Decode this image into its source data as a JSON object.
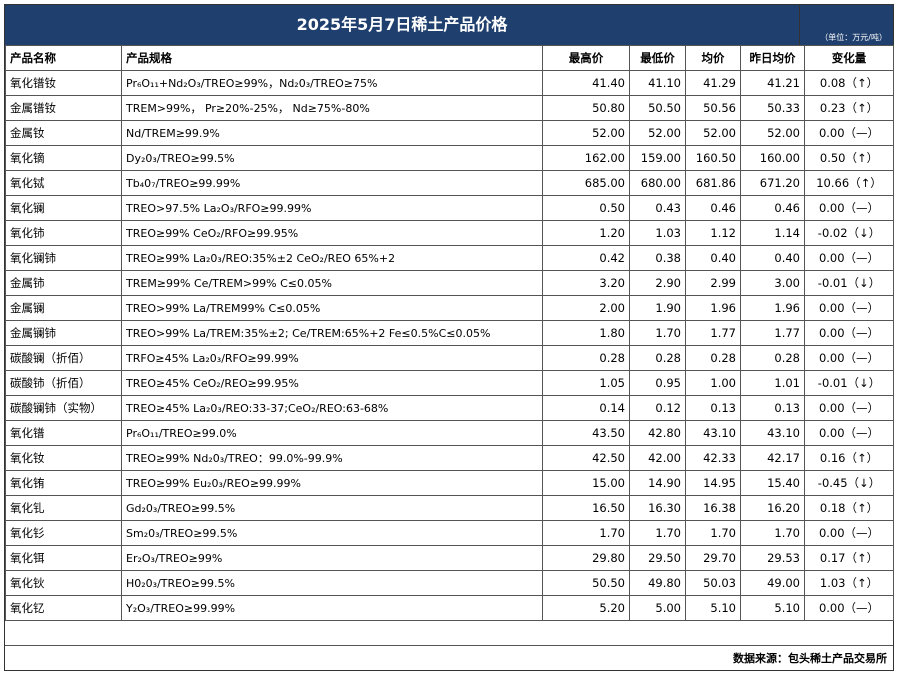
{
  "title": "2025年5月7日稀土产品价格",
  "unit": "（单位：万元/吨）",
  "headers": {
    "name": "产品名称",
    "spec": "产品规格",
    "high": "最高价",
    "low": "最低价",
    "avg": "均价",
    "prev": "昨日均价",
    "change": "变化量"
  },
  "rows": [
    {
      "name": "氧化镨钕",
      "spec": "Pr₆O₁₁+Nd₂O₃/TREO≥99%，Nd₂0₃/TREO≥75%",
      "high": "41.40",
      "low": "41.10",
      "avg": "41.29",
      "prev": "41.21",
      "change": "0.08（↑）"
    },
    {
      "name": "金属镨钕",
      "spec": "TREM>99%，  Pr≥20%-25%，  Nd≥75%-80%",
      "high": "50.80",
      "low": "50.50",
      "avg": "50.56",
      "prev": "50.33",
      "change": "0.23（↑）"
    },
    {
      "name": "金属钕",
      "spec": "Nd/TREM≥99.9%",
      "high": "52.00",
      "low": "52.00",
      "avg": "52.00",
      "prev": "52.00",
      "change": "0.00（—）"
    },
    {
      "name": "氧化镝",
      "spec": "Dy₂0₃/TREO≥99.5%",
      "high": "162.00",
      "low": "159.00",
      "avg": "160.50",
      "prev": "160.00",
      "change": "0.50（↑）"
    },
    {
      "name": "氧化铽",
      "spec": "Tb₄0₇/TREO≥99.99%",
      "high": "685.00",
      "low": "680.00",
      "avg": "681.86",
      "prev": "671.20",
      "change": "10.66（↑）"
    },
    {
      "name": "氧化镧",
      "spec": "TREO>97.5%   La₂O₃/RFO≥99.99%",
      "high": "0.50",
      "low": "0.43",
      "avg": "0.46",
      "prev": "0.46",
      "change": "0.00（—）"
    },
    {
      "name": "氧化铈",
      "spec": "TREO≥99%   CeO₂/RFO≥99.95%",
      "high": "1.20",
      "low": "1.03",
      "avg": "1.12",
      "prev": "1.14",
      "change": "-0.02（↓）"
    },
    {
      "name": "氧化镧铈",
      "spec": "TREO≥99%   La₂0₃/REO:35%±2  CeO₂/REO  65%+2",
      "high": "0.42",
      "low": "0.38",
      "avg": "0.40",
      "prev": "0.40",
      "change": "0.00（—）"
    },
    {
      "name": "金属铈",
      "spec": "TREM≥99%    Ce/TREM>99%   C≤0.05%",
      "high": "3.20",
      "low": "2.90",
      "avg": "2.99",
      "prev": "3.00",
      "change": "-0.01（↓）"
    },
    {
      "name": "金属镧",
      "spec": "TREO>99%   La/TREM99%  C≤0.05%",
      "high": "2.00",
      "low": "1.90",
      "avg": "1.96",
      "prev": "1.96",
      "change": "0.00（—）"
    },
    {
      "name": "金属镧铈",
      "spec": "TREO>99%   La/TREM:35%±2;  Ce/TREM:65%+2 Fe≤0.5%C≤0.05%",
      "high": "1.80",
      "low": "1.70",
      "avg": "1.77",
      "prev": "1.77",
      "change": "0.00（—）"
    },
    {
      "name": "碳酸镧（折佰）",
      "spec": "TRFO≥45%   La₂0₃/RFO≥99.99%",
      "high": "0.28",
      "low": "0.28",
      "avg": "0.28",
      "prev": "0.28",
      "change": "0.00（—）"
    },
    {
      "name": "碳酸铈（折佰）",
      "spec": "TREO≥45%   CeO₂/REO≥99.95%",
      "high": "1.05",
      "low": "0.95",
      "avg": "1.00",
      "prev": "1.01",
      "change": "-0.01（↓）"
    },
    {
      "name": "碳酸镧铈（实物）",
      "spec": "TREO≥45% La₂0₃/REO:33-37;CeO₂/REO:63-68%",
      "high": "0.14",
      "low": "0.12",
      "avg": "0.13",
      "prev": "0.13",
      "change": "0.00（—）"
    },
    {
      "name": "氧化镨",
      "spec": "Pr₆O₁₁/TREO≥99.0%",
      "high": "43.50",
      "low": "42.80",
      "avg": "43.10",
      "prev": "43.10",
      "change": "0.00（—）"
    },
    {
      "name": "氧化钕",
      "spec": "TREO≥99%   Nd₂0₃/TREO：99.0%-99.9%",
      "high": "42.50",
      "low": "42.00",
      "avg": "42.33",
      "prev": "42.17",
      "change": "0.16（↑）"
    },
    {
      "name": "氧化铕",
      "spec": "TREO≥99%    Eu₂0₃/REO≥99.99%",
      "high": "15.00",
      "low": "14.90",
      "avg": "14.95",
      "prev": "15.40",
      "change": "-0.45（↓）"
    },
    {
      "name": "氧化钆",
      "spec": "Gd₂0₃/TREO≥99.5%",
      "high": "16.50",
      "low": "16.30",
      "avg": "16.38",
      "prev": "16.20",
      "change": "0.18（↑）"
    },
    {
      "name": "氧化钐",
      "spec": "Sm₂0₃/TREO≥99.5%",
      "high": "1.70",
      "low": "1.70",
      "avg": "1.70",
      "prev": "1.70",
      "change": "0.00（—）"
    },
    {
      "name": "氧化铒",
      "spec": "Er₂O₃/TREO≥99%",
      "high": "29.80",
      "low": "29.50",
      "avg": "29.70",
      "prev": "29.53",
      "change": "0.17（↑）"
    },
    {
      "name": "氧化钬",
      "spec": "H0₂0₃/TREO≥99.5%",
      "high": "50.50",
      "low": "49.80",
      "avg": "50.03",
      "prev": "49.00",
      "change": "1.03（↑）"
    },
    {
      "name": "氧化钇",
      "spec": "Y₂O₃/TREO≥99.99%",
      "high": "5.20",
      "low": "5.00",
      "avg": "5.10",
      "prev": "5.10",
      "change": "0.00（—）"
    }
  ],
  "footer": "数据来源：包头稀土产品交易所"
}
